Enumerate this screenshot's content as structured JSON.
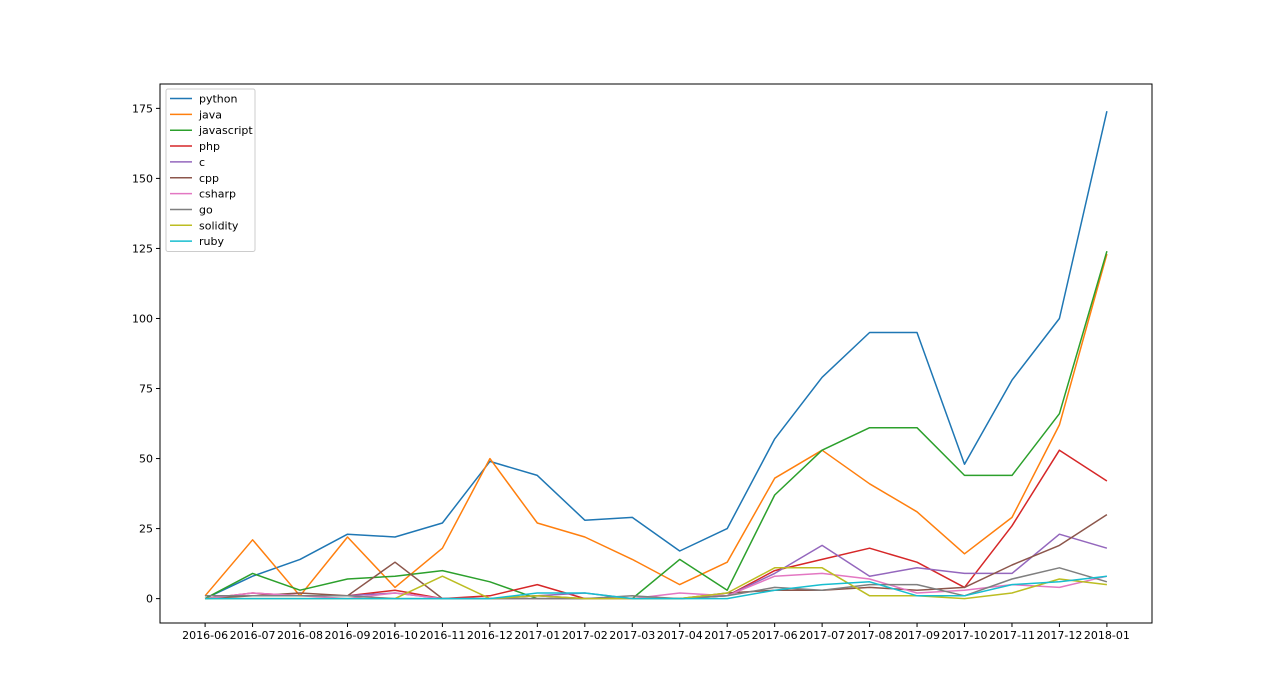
{
  "chart_data": {
    "type": "line",
    "title": "",
    "xlabel": "",
    "ylabel": "",
    "categories": [
      "2016-06",
      "2016-07",
      "2016-08",
      "2016-09",
      "2016-10",
      "2016-11",
      "2016-12",
      "2017-01",
      "2017-02",
      "2017-03",
      "2017-04",
      "2017-05",
      "2017-06",
      "2017-07",
      "2017-08",
      "2017-09",
      "2017-10",
      "2017-11",
      "2017-12",
      "2018-01"
    ],
    "ylim": [
      -8.7,
      183.7
    ],
    "yticks": [
      0,
      25,
      50,
      75,
      100,
      125,
      150,
      175
    ],
    "grid": false,
    "legend": "top-left",
    "series": [
      {
        "name": "python",
        "color": "#1f77b4",
        "values": [
          0,
          8,
          14,
          23,
          22,
          27,
          49,
          44,
          28,
          29,
          17,
          25,
          57,
          79,
          95,
          95,
          48,
          78,
          100,
          174
        ]
      },
      {
        "name": "java",
        "color": "#ff7f0e",
        "values": [
          1,
          21,
          1,
          22,
          4,
          18,
          50,
          27,
          22,
          14,
          5,
          13,
          43,
          53,
          41,
          31,
          16,
          29,
          62,
          123
        ]
      },
      {
        "name": "javascript",
        "color": "#2ca02c",
        "values": [
          0,
          9,
          3,
          7,
          8,
          10,
          6,
          0,
          0,
          0,
          14,
          3,
          37,
          53,
          61,
          61,
          44,
          44,
          66,
          124
        ]
      },
      {
        "name": "php",
        "color": "#d62728",
        "values": [
          0,
          2,
          1,
          1,
          3,
          0,
          1,
          5,
          0,
          0,
          0,
          1,
          10,
          14,
          18,
          13,
          4,
          26,
          53,
          42
        ]
      },
      {
        "name": "c",
        "color": "#9467bd",
        "values": [
          1,
          1,
          1,
          1,
          2,
          0,
          0,
          1,
          2,
          0,
          0,
          1,
          9,
          19,
          8,
          11,
          9,
          9,
          23,
          18
        ]
      },
      {
        "name": "cpp",
        "color": "#8c564b",
        "values": [
          0,
          1,
          2,
          1,
          13,
          0,
          0,
          1,
          0,
          0,
          0,
          2,
          3,
          3,
          4,
          3,
          4,
          12,
          19,
          30
        ]
      },
      {
        "name": "csharp",
        "color": "#e377c2",
        "values": [
          0,
          2,
          1,
          0,
          2,
          0,
          0,
          0,
          0,
          0,
          2,
          1,
          8,
          9,
          7,
          2,
          3,
          5,
          4,
          8
        ]
      },
      {
        "name": "go",
        "color": "#7f7f7f",
        "values": [
          1,
          1,
          1,
          1,
          0,
          0,
          0,
          0,
          0,
          1,
          0,
          1,
          4,
          3,
          5,
          5,
          1,
          7,
          11,
          6
        ]
      },
      {
        "name": "solidity",
        "color": "#bcbd22",
        "values": [
          0,
          0,
          0,
          0,
          0,
          8,
          0,
          1,
          0,
          0,
          0,
          2,
          11,
          11,
          1,
          1,
          0,
          2,
          7,
          5
        ]
      },
      {
        "name": "ruby",
        "color": "#17becf",
        "values": [
          0,
          0,
          0,
          0,
          0,
          0,
          0,
          2,
          2,
          0,
          0,
          0,
          3,
          5,
          6,
          1,
          1,
          5,
          6,
          8
        ]
      }
    ]
  }
}
